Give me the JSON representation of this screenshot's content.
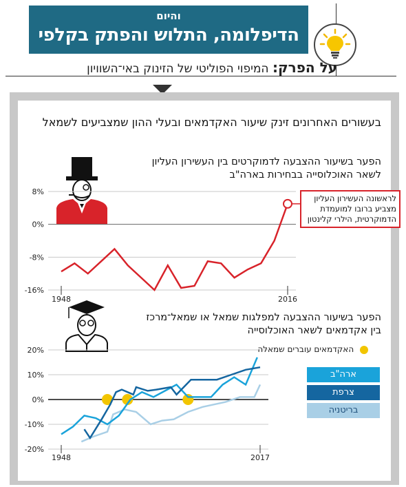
{
  "header": {
    "kicker": "והיום",
    "title": "הדיפלומה, התלוש והפתק בקלפי"
  },
  "subheader": {
    "kicker": "על הפרק:",
    "text": "המיפוי הפוליטי של הזינוק באי־השוויון"
  },
  "panel_title": "בעשורים האחרונים זינק שיעור האקדמאים ובעלי ההון שמצביעים לשמאל",
  "callout": "לראשונה העשירון העליון מצביע ברובו למועמדת הדמוקרטית, הילרי קלינטון",
  "colors": {
    "header": "#1f6a84",
    "red": "#d8232a",
    "us": "#1aa3da",
    "france": "#1566a0",
    "uk": "#a9cfe6",
    "dot": "#f2c500"
  },
  "icons": [
    "light-bulb-icon",
    "top-hat-rich-man-icon",
    "graduate-icon"
  ],
  "chart_data": [
    {
      "type": "line",
      "title": "הפער בשיעור ההצבעה לדמוקרטים בין העשירון העליון לשאר האוכלוסייה בבחירות בארה\"ב",
      "x_tick_labels": [
        "1948",
        "2016"
      ],
      "xlim": [
        1948,
        2016
      ],
      "ylim": [
        -16,
        8
      ],
      "y_ticks": [
        8,
        0,
        -8,
        -16
      ],
      "y_tick_labels": [
        "8%",
        "0%",
        "-8%",
        "-16%"
      ],
      "series": [
        {
          "x": [
            1948,
            1952,
            1956,
            1960,
            1964,
            1968,
            1972,
            1976,
            1980,
            1984,
            1988,
            1992,
            1996,
            2000,
            2004,
            2008,
            2012,
            2016
          ],
          "values": [
            -11.5,
            -9.5,
            -12,
            -9,
            -6,
            -10,
            -13,
            -16,
            -10,
            -15.5,
            -15,
            -9,
            -9.5,
            -13,
            -11,
            -9.5,
            -4,
            5
          ]
        }
      ]
    },
    {
      "type": "line",
      "title": "הפער בשיעור ההצבעה למפלגות שמאל או שמאל־מרכז בין אקדמאים לשאר האוכלוסייה",
      "x_tick_labels": [
        "1948",
        "2017"
      ],
      "xlim": [
        1948,
        2017
      ],
      "ylim": [
        -20,
        20
      ],
      "y_ticks": [
        20,
        10,
        0,
        -10,
        -20
      ],
      "y_tick_labels": [
        "20%",
        "10%",
        "0%",
        "-10%",
        "-20%"
      ],
      "legend": "האקדמאים עוברים שמאלה",
      "series": [
        {
          "name": "ארה\"ב",
          "x": [
            1948,
            1952,
            1956,
            1960,
            1964,
            1968,
            1972,
            1976,
            1980,
            1984,
            1988,
            1992,
            1996,
            2000,
            2004,
            2008,
            2012,
            2016
          ],
          "values": [
            -14,
            -11,
            -6.5,
            -7.5,
            -10,
            -6.5,
            0,
            3,
            1,
            3.5,
            6,
            1,
            1,
            1,
            6,
            9,
            6,
            17
          ]
        },
        {
          "name": "צרפת",
          "x": [
            1956,
            1958,
            1962,
            1965,
            1967,
            1969,
            1973,
            1974,
            1978,
            1981,
            1986,
            1988,
            1993,
            1995,
            1997,
            2002,
            2007,
            2012,
            2017
          ],
          "values": [
            -12,
            -15.5,
            -8,
            -2,
            3,
            4,
            2,
            5,
            3.5,
            4,
            5,
            2,
            8,
            8,
            8,
            8,
            10,
            12,
            13
          ]
        },
        {
          "name": "בריטניה",
          "x": [
            1955,
            1959,
            1964,
            1966,
            1970,
            1974,
            1979,
            1983,
            1987,
            1992,
            1997,
            2001,
            2005,
            2010,
            2015,
            2017
          ],
          "values": [
            -17,
            -15,
            -13,
            -6,
            -4,
            -5,
            -10,
            -8.5,
            -8,
            -5,
            -3,
            -2,
            -1,
            1,
            1,
            6
          ]
        }
      ],
      "markers": [
        1964,
        1971,
        1992
      ]
    }
  ]
}
